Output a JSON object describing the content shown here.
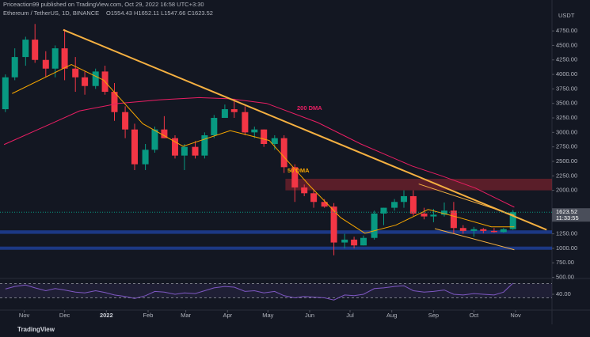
{
  "header": {
    "publisher": "Priceaction99 published on TradingView.com, Oct 29, 2022 16:58 UTC+3:30",
    "symbol": "Ethereum / TetherUS, 1D, BINANCE",
    "ohlc": "O1554.43 H1652.11 L1547.66 C1623.52",
    "footer": "TradingView"
  },
  "chart_data": [
    {
      "type": "candlestick",
      "ylabel": "USDT",
      "xlim": [
        -18,
        392
      ],
      "ylim": [
        480,
        5120
      ],
      "grid": false,
      "up_color": "#089981",
      "down_color": "#f23645",
      "xticks": [
        {
          "value": 0,
          "label": "Nov"
        },
        {
          "value": 30,
          "label": "Dec"
        },
        {
          "value": 61,
          "label": "2022"
        },
        {
          "value": 92,
          "label": "Feb"
        },
        {
          "value": 120,
          "label": "Mar"
        },
        {
          "value": 151,
          "label": "Apr"
        },
        {
          "value": 181,
          "label": "May"
        },
        {
          "value": 212,
          "label": "Jun"
        },
        {
          "value": 242,
          "label": "Jul"
        },
        {
          "value": 273,
          "label": "Aug"
        },
        {
          "value": 304,
          "label": "Sep"
        },
        {
          "value": 334,
          "label": "Oct"
        },
        {
          "value": 365,
          "label": "Nov"
        }
      ],
      "yticks": [
        {
          "value": 4750,
          "label": "4750.00"
        },
        {
          "value": 4500,
          "label": "4500.00"
        },
        {
          "value": 4250,
          "label": "4250.00"
        },
        {
          "value": 4000,
          "label": "4000.00"
        },
        {
          "value": 3750,
          "label": "3750.00"
        },
        {
          "value": 3500,
          "label": "3500.00"
        },
        {
          "value": 3250,
          "label": "3250.00"
        },
        {
          "value": 3000,
          "label": "3000.00"
        },
        {
          "value": 2750,
          "label": "2750.00"
        },
        {
          "value": 2500,
          "label": "2500.00"
        },
        {
          "value": 2250,
          "label": "2250.00"
        },
        {
          "value": 2000,
          "label": "2000.00"
        },
        {
          "value": 1250,
          "label": "1250.00"
        },
        {
          "value": 1000,
          "label": "1000.00"
        },
        {
          "value": 750,
          "label": "750.00"
        },
        {
          "value": 500,
          "label": "500.00"
        }
      ],
      "x": [
        -14,
        -7,
        1,
        8,
        16,
        23,
        30,
        38,
        45,
        53,
        60,
        67,
        75,
        82,
        90,
        97,
        104,
        112,
        119,
        127,
        134,
        141,
        149,
        156,
        164,
        171,
        178,
        186,
        193,
        201,
        208,
        215,
        223,
        230,
        238,
        245,
        252,
        260,
        267,
        275,
        282,
        289,
        297,
        304,
        312,
        319,
        326,
        334,
        341,
        349,
        356,
        363
      ],
      "open": [
        3400,
        3950,
        4300,
        4600,
        4250,
        4100,
        4450,
        4100,
        3950,
        3800,
        4050,
        3700,
        3350,
        3050,
        2450,
        2700,
        3050,
        2900,
        2600,
        2750,
        2600,
        2950,
        3250,
        3400,
        3350,
        3000,
        3050,
        2800,
        2900,
        2400,
        2050,
        1950,
        1800,
        1720,
        1100,
        1150,
        1050,
        1180,
        1600,
        1700,
        1800,
        1900,
        1600,
        1550,
        1580,
        1650,
        1350,
        1300,
        1330,
        1300,
        1280,
        1330
      ],
      "high": [
        4000,
        4450,
        4650,
        4870,
        4400,
        4500,
        4780,
        4300,
        4050,
        4100,
        4150,
        3850,
        3450,
        3150,
        2800,
        3100,
        3280,
        2950,
        2800,
        2850,
        3000,
        3300,
        3480,
        3580,
        3450,
        3100,
        3050,
        2950,
        2950,
        2450,
        2100,
        2000,
        1850,
        1780,
        1250,
        1200,
        1220,
        1650,
        1700,
        1850,
        2000,
        2000,
        1700,
        1680,
        1790,
        1800,
        1400,
        1370,
        1350,
        1350,
        1350,
        1660
      ],
      "low": [
        3350,
        3900,
        4150,
        4200,
        3950,
        3950,
        3900,
        3700,
        3650,
        3750,
        3650,
        3200,
        2900,
        2350,
        2350,
        2650,
        2900,
        2550,
        2350,
        2550,
        2550,
        2900,
        3250,
        3250,
        2950,
        2900,
        2750,
        2700,
        2300,
        1800,
        1900,
        1700,
        1700,
        880,
        1000,
        1000,
        1050,
        1150,
        1400,
        1650,
        1700,
        1560,
        1500,
        1450,
        1550,
        1250,
        1250,
        1200,
        1260,
        1270,
        1270,
        1320
      ],
      "close": [
        3950,
        4300,
        4600,
        4250,
        4100,
        4450,
        4100,
        3950,
        3800,
        4050,
        3700,
        3350,
        3050,
        2450,
        2700,
        3050,
        2900,
        2600,
        2750,
        2600,
        2950,
        3250,
        3400,
        3350,
        3000,
        3050,
        2800,
        2900,
        2400,
        2050,
        1950,
        1800,
        1720,
        1100,
        1150,
        1050,
        1180,
        1600,
        1700,
        1800,
        1900,
        1600,
        1550,
        1580,
        1650,
        1350,
        1300,
        1330,
        1300,
        1280,
        1330,
        1623
      ],
      "moving_averages": [
        {
          "name": "200 DMA",
          "color": "#e91e63",
          "x": [
            -15,
            20,
            41,
            70,
            100,
            130,
            153,
            180,
            218,
            250,
            288,
            310,
            335,
            364
          ],
          "values": [
            2790,
            3150,
            3370,
            3500,
            3560,
            3600,
            3580,
            3500,
            3170,
            2800,
            2420,
            2250,
            2040,
            1710
          ]
        },
        {
          "name": "50 DMA",
          "color": "#f7a600",
          "x": [
            -9,
            35,
            59,
            88,
            118,
            153,
            182,
            212,
            235,
            253,
            276,
            300,
            323,
            347,
            364
          ],
          "values": [
            3670,
            4170,
            3900,
            3150,
            2760,
            3030,
            2860,
            2080,
            1530,
            1260,
            1400,
            1670,
            1530,
            1370,
            1370
          ]
        }
      ],
      "trendlines": [
        {
          "color": "#f5b041",
          "x": [
            29,
            388
          ],
          "values": [
            4770,
            1320
          ]
        },
        {
          "color": "#f5b041",
          "x": [
            293,
            364
          ],
          "values": [
            2110,
            1570
          ]
        },
        {
          "color": "#f5b041",
          "x": [
            305,
            364
          ],
          "values": [
            1340,
            975
          ]
        }
      ],
      "zones": [
        {
          "color": "#b22833",
          "x": [
            194,
            392
          ],
          "low": 2000,
          "high": 2200
        },
        {
          "color": "#2962ff",
          "x": [
            -18,
            392
          ],
          "low": 1250,
          "high": 1310
        },
        {
          "color": "#2962ff",
          "x": [
            -18,
            392
          ],
          "low": 975,
          "high": 1030
        }
      ],
      "last_price": {
        "value": 1623.52,
        "label": "1623.52",
        "countdown": "11:33:55"
      }
    },
    {
      "type": "line",
      "xlim": [
        -18,
        392
      ],
      "ylim": [
        0,
        80
      ],
      "yticks": [
        {
          "value": 40,
          "label": "40.00"
        }
      ],
      "bands": [
        30,
        70
      ],
      "color": "#7e57c2",
      "x": [
        -14,
        -7,
        1,
        8,
        16,
        23,
        30,
        38,
        45,
        53,
        60,
        67,
        75,
        82,
        90,
        97,
        104,
        112,
        119,
        127,
        134,
        141,
        149,
        156,
        164,
        171,
        178,
        186,
        193,
        201,
        208,
        215,
        223,
        230,
        238,
        245,
        252,
        260,
        267,
        275,
        282,
        289,
        297,
        304,
        312,
        319,
        326,
        334,
        341,
        349,
        356,
        363
      ],
      "values": [
        55,
        62,
        66,
        58,
        50,
        56,
        52,
        46,
        44,
        50,
        45,
        38,
        34,
        28,
        36,
        48,
        46,
        40,
        44,
        42,
        50,
        58,
        62,
        60,
        48,
        50,
        44,
        48,
        36,
        30,
        34,
        32,
        30,
        24,
        38,
        36,
        40,
        56,
        58,
        62,
        64,
        50,
        46,
        48,
        52,
        40,
        38,
        42,
        40,
        38,
        46,
        71
      ]
    }
  ]
}
